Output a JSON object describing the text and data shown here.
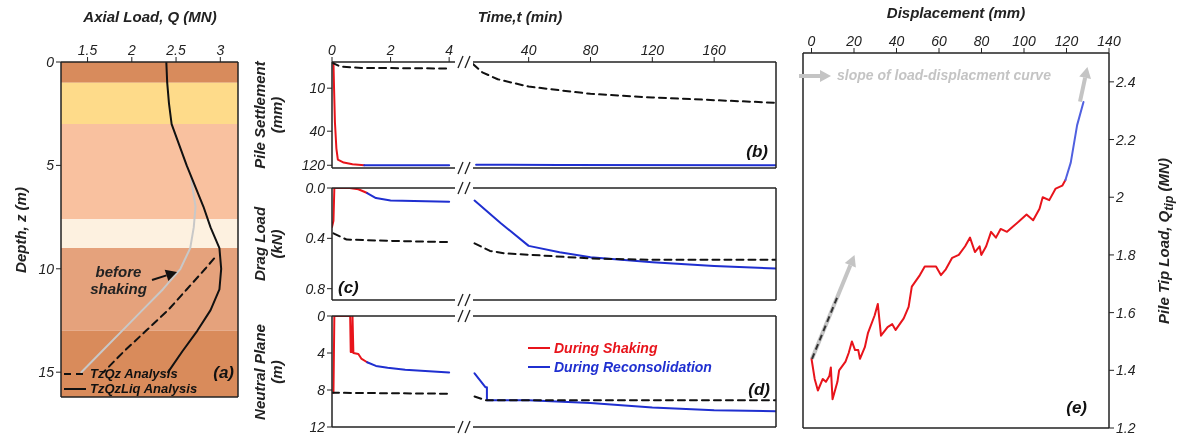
{
  "chart_data": [
    {
      "type": "line",
      "xlabel": "Axial Load, Q (MN)",
      "ylabel": "Depth, z (m)",
      "xlim": [
        1.2,
        3.2
      ],
      "xticks": [
        1.5,
        2,
        2.5,
        3
      ],
      "ylim": [
        16.2,
        0
      ],
      "yticks": [
        0,
        5,
        10,
        15
      ],
      "legend": "bottom left",
      "bands": [
        {
          "axis": "y",
          "from": 0,
          "to": 1,
          "color": "#d88b5c"
        },
        {
          "axis": "y",
          "from": 1,
          "to": 3,
          "color": "#fedb8a"
        },
        {
          "axis": "y",
          "from": 3,
          "to": 7.6,
          "color": "#f9c19f"
        },
        {
          "axis": "y",
          "from": 7.6,
          "to": 9,
          "color": "#fdf1e0"
        },
        {
          "axis": "y",
          "from": 9,
          "to": 13,
          "color": "#e5a27c"
        },
        {
          "axis": "y",
          "from": 13,
          "to": 16.2,
          "color": "#d98b5b"
        }
      ],
      "series": [
        {
          "color": "#c8c8c8",
          "x": [
            2.67,
            2.72,
            2.7,
            2.66,
            2.55,
            2.35,
            2.12,
            1.89,
            1.66,
            1.43
          ],
          "values": [
            5.6,
            7,
            8,
            9,
            10,
            11,
            12,
            13,
            14,
            15
          ]
        },
        {
          "name": "TzQz Analysis",
          "color": "#111111",
          "line_style": "dashed",
          "x": [
            2.93,
            2.83,
            2.62,
            2.41,
            2.16,
            1.91,
            1.68
          ],
          "values": [
            9.5,
            10,
            11,
            12,
            13,
            14,
            15
          ]
        },
        {
          "name": "TzQzLiq Analysis",
          "color": "#111111",
          "line_style": "solid",
          "x": [
            2.39,
            2.4,
            2.42,
            2.45,
            2.62,
            2.81,
            2.89,
            2.99,
            3.01,
            2.99,
            2.89,
            2.74,
            2.57,
            2.41
          ],
          "values": [
            0,
            1,
            2,
            3,
            5,
            7,
            8,
            9,
            10,
            11,
            12,
            13,
            14,
            15
          ]
        }
      ],
      "annotations": [
        "(a)",
        {
          "text": "before shaking",
          "x": 2.55,
          "y": 10.2
        }
      ]
    },
    {
      "type": "line",
      "xlabel": "Time,t (min)",
      "ylabel": "Pile Settlement (mm)",
      "xlim": [
        0,
        4.2
      ],
      "xticks": [
        0,
        2,
        4
      ],
      "ylim": [
        131,
        4.3
      ],
      "yticks": [
        10,
        40,
        120
      ],
      "log": "y",
      "series": [
        {
          "color": "#e8141b",
          "x": [
            0.05,
            0.07,
            0.1,
            0.15,
            0.2,
            0.4,
            0.7,
            1.1
          ],
          "values": [
            4.4,
            10,
            30,
            70,
            100,
            110,
            116,
            120
          ]
        },
        {
          "color": "#1f2fd0",
          "x": [
            1.1,
            4
          ],
          "values": [
            120,
            120
          ]
        },
        {
          "color": "#111111",
          "line_style": "dashed",
          "x": [
            0,
            0.3,
            1,
            4
          ],
          "values": [
            4.4,
            5,
            5.2,
            5.3
          ]
        }
      ]
    },
    {
      "type": "line",
      "xlim": [
        4,
        200
      ],
      "xticks": [
        40,
        80,
        120,
        160
      ],
      "ylim": [
        131,
        4.3
      ],
      "yticks": [
        10,
        40,
        120
      ],
      "log": "y",
      "tick_labels": "x",
      "series": [
        {
          "color": "#1f2fd0",
          "x": [
            6,
            60,
            200
          ],
          "values": [
            118,
            119,
            120
          ]
        },
        {
          "color": "#111111",
          "line_style": "dashed",
          "x": [
            4,
            10,
            20,
            40,
            80,
            120,
            160,
            200
          ],
          "values": [
            4.6,
            6,
            7.5,
            9.5,
            12,
            13.5,
            14.7,
            16
          ]
        }
      ],
      "annotations": [
        "(b)"
      ]
    },
    {
      "type": "line",
      "ylabel": "Drag Load (kN)",
      "xlim": [
        0,
        4.2
      ],
      "xticks": [
        0,
        2,
        4
      ],
      "ylim": [
        0.89,
        0
      ],
      "yticks": [
        {
          "value": 0,
          "label": "0.0"
        },
        {
          "value": 0.4,
          "label": "0.4"
        },
        {
          "value": 0.8,
          "label": "0.8"
        }
      ],
      "tick_labels": "y",
      "series": [
        {
          "color": "#e8141b",
          "x": [
            0,
            0.05,
            0.08,
            0.6,
            0.9,
            1.2
          ],
          "values": [
            0.31,
            0.26,
            0,
            0,
            0.01,
            0.04
          ]
        },
        {
          "color": "#1f2fd0",
          "x": [
            1.2,
            1.5,
            2,
            4
          ],
          "values": [
            0.04,
            0.08,
            0.1,
            0.11
          ]
        },
        {
          "color": "#111111",
          "line_style": "dashed",
          "x": [
            0.05,
            0.5,
            2,
            4
          ],
          "values": [
            0.36,
            0.41,
            0.42,
            0.43
          ]
        }
      ],
      "annotations": [
        "(c)"
      ]
    },
    {
      "type": "line",
      "xlim": [
        4,
        200
      ],
      "xticks": [
        40,
        80,
        120,
        160
      ],
      "ylim": [
        0.89,
        0
      ],
      "yticks": [
        0,
        0.4,
        0.8
      ],
      "tick_labels": false,
      "series": [
        {
          "color": "#1f2fd0",
          "x": [
            5,
            22,
            40,
            60,
            80,
            120,
            160,
            200
          ],
          "values": [
            0.1,
            0.28,
            0.46,
            0.51,
            0.55,
            0.59,
            0.62,
            0.64
          ]
        },
        {
          "color": "#111111",
          "line_style": "dashed",
          "x": [
            5,
            15,
            25,
            40,
            80,
            120,
            200
          ],
          "values": [
            0.44,
            0.5,
            0.52,
            0.53,
            0.56,
            0.57,
            0.57
          ]
        }
      ]
    },
    {
      "type": "line",
      "ylabel": "Neutral Plane (m)",
      "xlim": [
        0,
        4.2
      ],
      "xticks": [
        0,
        2,
        4
      ],
      "ylim": [
        12,
        0
      ],
      "yticks": [
        0,
        4,
        8,
        12
      ],
      "tick_labels": "y",
      "legend": "right",
      "series": [
        {
          "name": "During Shaking",
          "color": "#e8141b",
          "x": [
            0.05,
            0.08,
            0.62,
            0.64,
            0.68,
            0.7,
            0.73,
            0.9,
            1,
            1.2
          ],
          "values": [
            8.3,
            0,
            0,
            3.9,
            3.9,
            0,
            4,
            4.1,
            4.6,
            5
          ]
        },
        {
          "name": "During Reconsolidation",
          "color": "#1f2fd0",
          "x": [
            1.2,
            1.5,
            1.9,
            2.5,
            4
          ],
          "values": [
            5,
            5.4,
            5.6,
            5.8,
            6.1
          ]
        },
        {
          "color": "#111111",
          "line_style": "dashed",
          "x": [
            0,
            4
          ],
          "values": [
            8.3,
            8.4
          ]
        }
      ]
    },
    {
      "type": "line",
      "xlim": [
        4,
        200
      ],
      "xticks": [
        40,
        80,
        120,
        160
      ],
      "ylim": [
        12,
        0
      ],
      "yticks": [
        0,
        4,
        8,
        12
      ],
      "tick_labels": false,
      "series": [
        {
          "color": "#1f2fd0",
          "x": [
            5,
            12,
            13,
            13,
            40,
            80,
            120,
            160,
            200
          ],
          "values": [
            6.2,
            7.7,
            7.7,
            9.1,
            9.1,
            9.4,
            9.9,
            10.2,
            10.3
          ]
        },
        {
          "color": "#111111",
          "line_style": "dashed",
          "x": [
            5,
            12,
            200
          ],
          "values": [
            8.7,
            9.1,
            9.1
          ]
        }
      ],
      "annotations": [
        "(d)"
      ]
    },
    {
      "type": "line",
      "xlabel": "Displacement (mm)",
      "ylabel": "Pile Tip Load, Q$_{tip}$ (MN)",
      "xlim": [
        -4,
        140
      ],
      "xticks": [
        0,
        20,
        40,
        60,
        80,
        100,
        120,
        140
      ],
      "ylim": [
        1.2,
        2.5
      ],
      "yticks": [
        1.2,
        1.4,
        1.6,
        1.8,
        2,
        2.2,
        2.4
      ],
      "series": [
        {
          "color": "#e8141b",
          "x": [
            0,
            1.5,
            3,
            5.3,
            6.8,
            8.4,
            9.1,
            9.9,
            12.2,
            13,
            16,
            17.5,
            19,
            20.5,
            22,
            22.8,
            25.1,
            26.6,
            29.7,
            31.2,
            32.7,
            35.8,
            38,
            39.6,
            43.4,
            45.7,
            47.2,
            51,
            53.3,
            56.3,
            58.6,
            60.9,
            63.2,
            66.2,
            69.3,
            72.3,
            74.6,
            76.9,
            79.1,
            79.9,
            82.2,
            84.5,
            86.8,
            89,
            92,
            95.1,
            98.2,
            101.2,
            104.3,
            107.3,
            108.8,
            111.9,
            114.9,
            118,
            119.5
          ],
          "values": [
            1.44,
            1.37,
            1.33,
            1.37,
            1.36,
            1.38,
            1.41,
            1.3,
            1.36,
            1.4,
            1.43,
            1.46,
            1.5,
            1.47,
            1.47,
            1.44,
            1.48,
            1.53,
            1.59,
            1.63,
            1.52,
            1.55,
            1.56,
            1.54,
            1.58,
            1.62,
            1.69,
            1.73,
            1.76,
            1.76,
            1.76,
            1.73,
            1.75,
            1.79,
            1.8,
            1.83,
            1.86,
            1.81,
            1.83,
            1.8,
            1.83,
            1.88,
            1.86,
            1.89,
            1.88,
            1.9,
            1.92,
            1.94,
            1.92,
            1.96,
            2,
            1.99,
            2.03,
            2.04,
            2.06
          ]
        },
        {
          "color": "#5060e0",
          "x": [
            119.5,
            122,
            125,
            128
          ],
          "values": [
            2.06,
            2.12,
            2.25,
            2.33
          ]
        }
      ],
      "annotations": [
        "slope of load-displacment curve",
        "(e)"
      ]
    }
  ]
}
